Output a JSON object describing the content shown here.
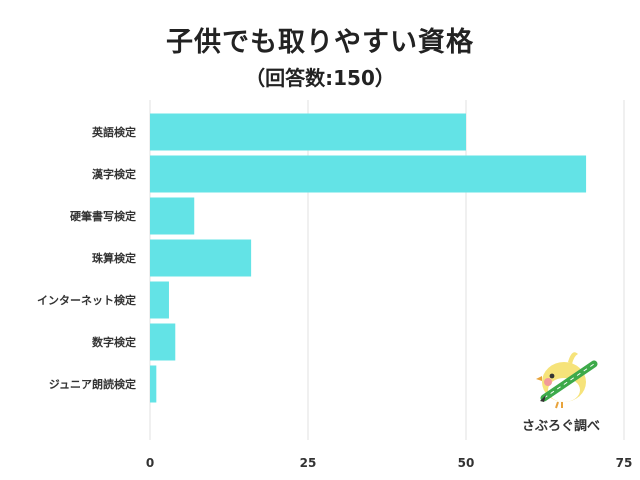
{
  "chart_data": {
    "type": "bar",
    "orientation": "horizontal",
    "title": "子供でも取りやすい資格",
    "subtitle": "（回答数:150）",
    "categories": [
      "英語検定",
      "漢字検定",
      "硬筆書写検定",
      "珠算検定",
      "インターネット検定",
      "数字検定",
      "ジュニア朗読検定"
    ],
    "values": [
      50,
      69,
      7,
      16,
      3,
      4,
      1
    ],
    "xlim": [
      0,
      75
    ],
    "xticks": [
      0,
      25,
      50,
      75
    ],
    "grid": true,
    "bar_color": "#63E3E6"
  },
  "brand": {
    "label": "さぶろぐ調べ"
  }
}
